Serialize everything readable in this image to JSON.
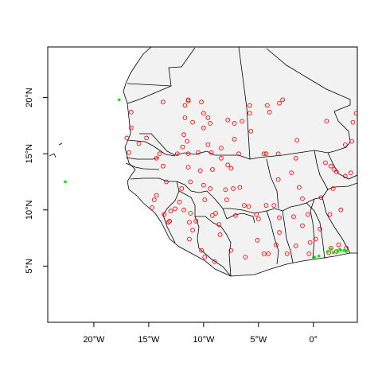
{
  "chart_data": {
    "type": "scatter",
    "title": "",
    "xlabel": "",
    "ylabel": "",
    "xlim": [
      -24.2,
      4.0
    ],
    "ylim": [
      0.0,
      24.5
    ],
    "x_ticks": [
      {
        "value": -20,
        "label": "20°W"
      },
      {
        "value": -15,
        "label": "15°W"
      },
      {
        "value": -10,
        "label": "10°W"
      },
      {
        "value": -5,
        "label": "5°W"
      },
      {
        "value": 0,
        "label": "0°"
      }
    ],
    "y_ticks": [
      {
        "value": 5,
        "label": "5°N"
      },
      {
        "value": 10,
        "label": "10°N"
      },
      {
        "value": 15,
        "label": "15°N"
      },
      {
        "value": 20,
        "label": "20°N"
      }
    ],
    "colors": {
      "stations": "#ff0000",
      "highlight": "#00ee00",
      "land": "#f2f2f2",
      "border": "#000000"
    },
    "series": [
      {
        "marker": "open-circle",
        "color": "#ff0000",
        "points": [
          [
            -16.6,
            18.7
          ],
          [
            -16.6,
            17.3
          ],
          [
            -17.0,
            16.4
          ],
          [
            -16.8,
            15.1
          ],
          [
            -15.9,
            15.9
          ],
          [
            -15.2,
            16.4
          ],
          [
            -13.7,
            19.6
          ],
          [
            -11.7,
            19.3
          ],
          [
            -11.4,
            19.7
          ],
          [
            -11.4,
            19.8
          ],
          [
            -10.2,
            19.6
          ],
          [
            -10.0,
            18.6
          ],
          [
            -11.7,
            18.2
          ],
          [
            -11.0,
            17.8
          ],
          [
            -9.4,
            17.7
          ],
          [
            -9.6,
            18.2
          ],
          [
            -10.0,
            17.3
          ],
          [
            -7.8,
            18.0
          ],
          [
            -7.2,
            17.7
          ],
          [
            -6.5,
            17.9
          ],
          [
            -5.8,
            18.6
          ],
          [
            -5.8,
            19.3
          ],
          [
            -4.2,
            19.3
          ],
          [
            -4.0,
            18.7
          ],
          [
            -3.1,
            19.5
          ],
          [
            -2.8,
            19.8
          ],
          [
            -5.7,
            17.0
          ],
          [
            -7.2,
            16.3
          ],
          [
            -11.8,
            16.7
          ],
          [
            -11.5,
            16.1
          ],
          [
            -11.9,
            15.6
          ],
          [
            -9.6,
            15.8
          ],
          [
            -9.3,
            15.1
          ],
          [
            -8.4,
            15.5
          ],
          [
            -10.5,
            15.1
          ],
          [
            -11.4,
            15.0
          ],
          [
            -12.4,
            15.0
          ],
          [
            -14.0,
            15.0
          ],
          [
            -14.3,
            14.6
          ],
          [
            -13.7,
            13.9
          ],
          [
            -11.4,
            13.8
          ],
          [
            -10.3,
            13.5
          ],
          [
            -9.2,
            13.6
          ],
          [
            -8.4,
            14.6
          ],
          [
            -7.8,
            14.0
          ],
          [
            -7.5,
            13.7
          ],
          [
            -6.8,
            15.0
          ],
          [
            -4.5,
            15.0
          ],
          [
            -4.3,
            15.0
          ],
          [
            -3.2,
            15.0
          ],
          [
            -1.5,
            16.2
          ],
          [
            1.2,
            17.9
          ],
          [
            1.1,
            14.2
          ],
          [
            1.6,
            13.9
          ],
          [
            1.9,
            13.6
          ],
          [
            2.1,
            13.4
          ],
          [
            3.4,
            13.3
          ],
          [
            2.9,
            15.8
          ],
          [
            2.9,
            13.0
          ],
          [
            3.6,
            17.8
          ],
          [
            3.9,
            18.6
          ],
          [
            3.5,
            16.1
          ],
          [
            -1.6,
            14.6
          ],
          [
            -2.0,
            13.3
          ],
          [
            -3.2,
            12.7
          ],
          [
            -1.3,
            12.0
          ],
          [
            -1.0,
            11.0
          ],
          [
            0.7,
            11.1
          ],
          [
            1.8,
            11.9
          ],
          [
            2.5,
            10.0
          ],
          [
            1.5,
            9.6
          ],
          [
            -11.2,
            12.5
          ],
          [
            -10.0,
            12.2
          ],
          [
            -8.0,
            11.8
          ],
          [
            -7.3,
            11.9
          ],
          [
            -6.7,
            12.0
          ],
          [
            -9.9,
            10.9
          ],
          [
            -9.4,
            11.9
          ],
          [
            -7.9,
            10.9
          ],
          [
            -6.3,
            10.4
          ],
          [
            -5.9,
            10.3
          ],
          [
            -4.3,
            10.4
          ],
          [
            -3.6,
            10.4
          ],
          [
            -3.1,
            9.3
          ],
          [
            -1.8,
            9.4
          ],
          [
            -1.0,
            8.6
          ],
          [
            -0.5,
            9.6
          ],
          [
            -13.4,
            12.5
          ],
          [
            -14.3,
            11.3
          ],
          [
            -12.6,
            10.1
          ],
          [
            -12.2,
            10.7
          ],
          [
            -11.8,
            10.0
          ],
          [
            -11.2,
            9.7
          ],
          [
            -11.3,
            8.9
          ],
          [
            -11.0,
            8.2
          ],
          [
            -10.7,
            9.0
          ],
          [
            -9.2,
            9.5
          ],
          [
            -8.9,
            9.7
          ],
          [
            -8.6,
            8.7
          ],
          [
            -13.2,
            8.9
          ],
          [
            -13.1,
            9.0
          ],
          [
            -11.3,
            7.4
          ],
          [
            -10.2,
            6.4
          ],
          [
            -9.9,
            5.8
          ],
          [
            -9.0,
            5.4
          ],
          [
            -7.5,
            6.4
          ],
          [
            -6.2,
            5.8
          ],
          [
            -8.5,
            7.8
          ],
          [
            -7.1,
            9.5
          ],
          [
            -5.1,
            7.3
          ],
          [
            -5.0,
            9.2
          ],
          [
            -4.5,
            6.1
          ],
          [
            -4.1,
            6.1
          ],
          [
            -3.1,
            8.0
          ],
          [
            -0.4,
            6.1
          ],
          [
            0.6,
            8.3
          ],
          [
            0.2,
            7.4
          ],
          [
            1.4,
            6.2
          ],
          [
            1.6,
            6.6
          ],
          [
            2.3,
            6.9
          ],
          [
            2.1,
            6.3
          ],
          [
            3.0,
            6.6
          ],
          [
            -1.6,
            6.8
          ],
          [
            -2.4,
            6.1
          ],
          [
            -3.4,
            6.9
          ],
          [
            -0.3,
            7.1
          ],
          [
            -13.6,
            9.6
          ],
          [
            -13.0,
            9.9
          ],
          [
            -12.0,
            11.9
          ],
          [
            -5.2,
            9.6
          ],
          [
            -14.7,
            10.2
          ],
          [
            -14.5,
            10.9
          ]
        ]
      },
      {
        "marker": "filled-dot",
        "color": "#00ee00",
        "points": [
          [
            -17.7,
            19.8
          ],
          [
            -22.6,
            12.5
          ],
          [
            0.1,
            5.8
          ],
          [
            1.3,
            6.3
          ],
          [
            1.8,
            6.2
          ],
          [
            2.2,
            6.3
          ],
          [
            2.5,
            6.4
          ],
          [
            2.8,
            6.4
          ],
          [
            3.0,
            6.3
          ],
          [
            2.4,
            6.5
          ],
          [
            1.6,
            6.5
          ],
          [
            0.5,
            5.9
          ]
        ]
      }
    ]
  }
}
